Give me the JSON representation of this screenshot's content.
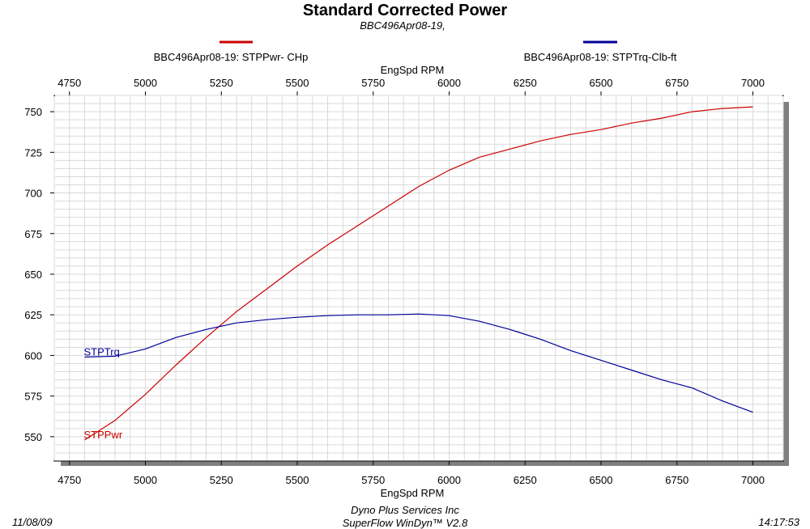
{
  "chart_data": {
    "type": "line",
    "title": "Standard Corrected Power",
    "subtitle": "BBC496Apr08-19,",
    "xlabel": "EngSpd  RPM",
    "xlim": [
      4700,
      7100
    ],
    "ylim": [
      535,
      760
    ],
    "x_ticks": [
      4750,
      5000,
      5250,
      5500,
      5750,
      6000,
      6250,
      6500,
      6750,
      7000
    ],
    "y_ticks": [
      550,
      575,
      600,
      625,
      650,
      675,
      700,
      725,
      750
    ],
    "grid": true,
    "legend_position": "top",
    "series": [
      {
        "name": "BBC496Apr08-19: STPPwr- CHp",
        "label": "STPPwr",
        "color": "#cc0000",
        "x": [
          4800,
          4900,
          5000,
          5100,
          5200,
          5300,
          5400,
          5500,
          5600,
          5700,
          5800,
          5900,
          6000,
          6100,
          6200,
          6300,
          6400,
          6500,
          6600,
          6700,
          6800,
          6900,
          7000
        ],
        "values": [
          548,
          560,
          576,
          594,
          611,
          627,
          641,
          655,
          668,
          680,
          692,
          704,
          714,
          722,
          727,
          732,
          736,
          739,
          743,
          746,
          750,
          752,
          753
        ]
      },
      {
        "name": "BBC496Apr08-19: STPTrq-Clb-ft",
        "label": "STPTrq",
        "color": "#000099",
        "x": [
          4800,
          4900,
          5000,
          5100,
          5200,
          5300,
          5400,
          5500,
          5600,
          5700,
          5800,
          5900,
          6000,
          6100,
          6200,
          6300,
          6400,
          6500,
          6600,
          6700,
          6800,
          6900,
          7000
        ],
        "values": [
          599,
          599.5,
          604,
          611,
          616,
          620,
          622,
          623.5,
          624.5,
          625,
          625,
          625.5,
          624.5,
          621,
          616,
          610,
          603,
          597,
          591,
          585,
          580,
          572,
          565
        ]
      }
    ]
  },
  "footer": {
    "date": "11/08/09",
    "company": "Dyno Plus Services Inc",
    "software": "SuperFlow WinDyn™ V2.8",
    "time": "14:17:53"
  }
}
